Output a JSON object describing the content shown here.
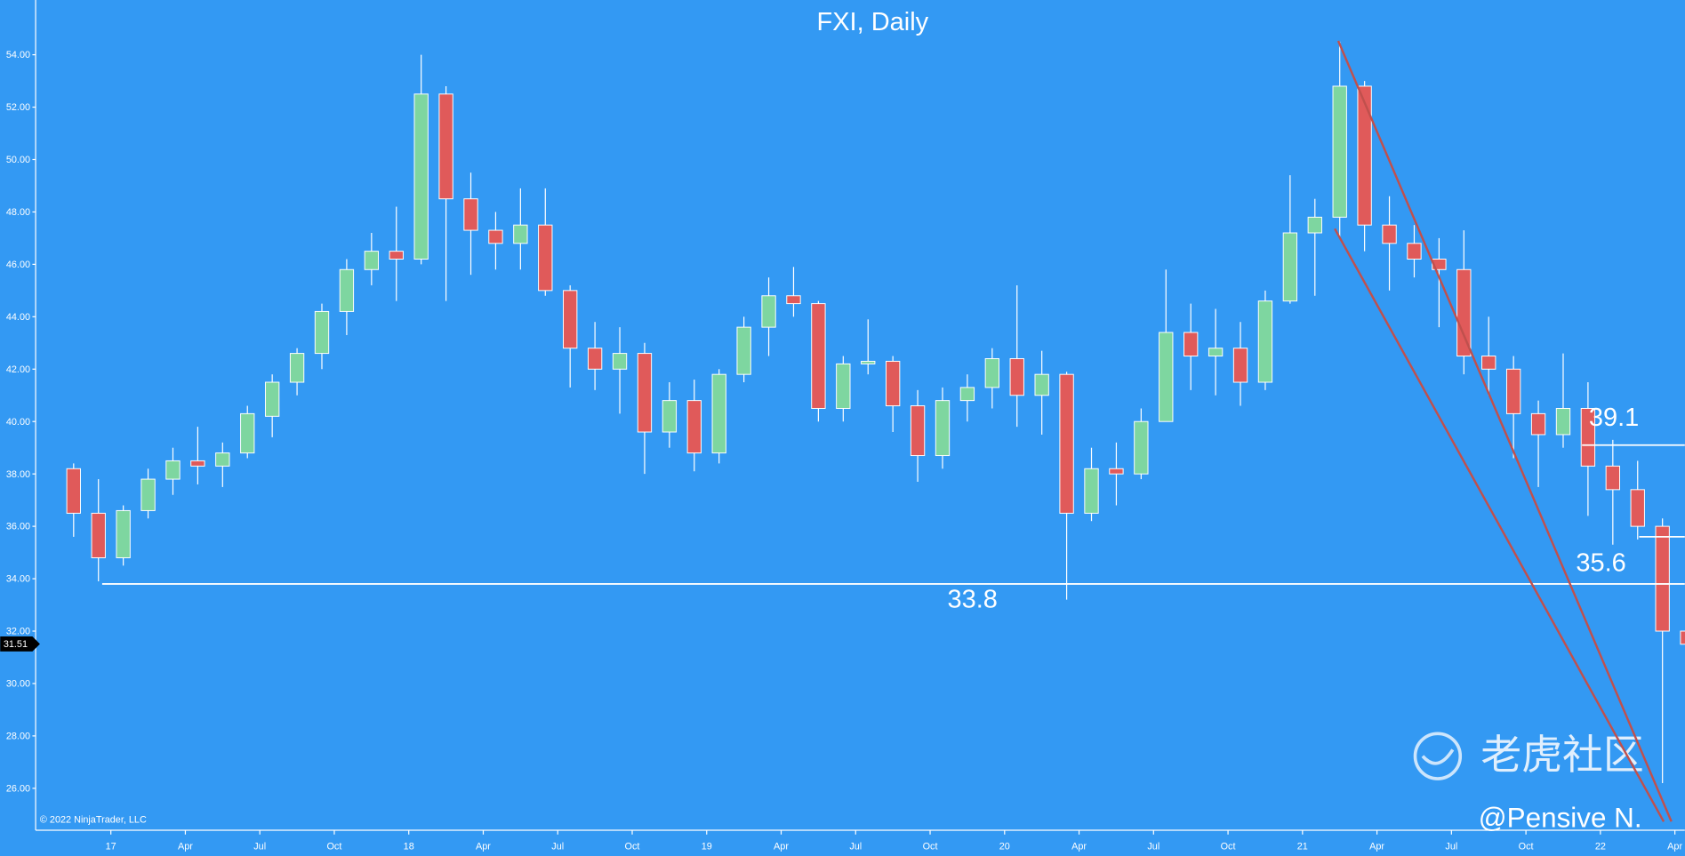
{
  "chart_data": {
    "type": "candlestick",
    "title": "FXI, Daily",
    "copyright": "© 2022 NinjaTrader, LLC",
    "watermark": "老虎社区",
    "author": "@Pensive N.",
    "background": "#3399f3",
    "up_color": "#7ed6a0",
    "down_color": "#e05a5a",
    "x": [
      -2,
      -1,
      0,
      1,
      2,
      3,
      4,
      5,
      6,
      7,
      8,
      9,
      10,
      11,
      12,
      13,
      14,
      15,
      16,
      17,
      18,
      19,
      20,
      21,
      22,
      23,
      24,
      25,
      26,
      27,
      28,
      29,
      30,
      31,
      32,
      33,
      34,
      35,
      36,
      37,
      38,
      39,
      40,
      41,
      42,
      43,
      44,
      45,
      46,
      47,
      48,
      49,
      50,
      51,
      52,
      53,
      54,
      55,
      56,
      57,
      58,
      59,
      60,
      61,
      62,
      63
    ],
    "open": [
      38.2,
      36.5,
      34.8,
      36.6,
      37.8,
      38.5,
      38.3,
      38.8,
      40.2,
      41.5,
      42.6,
      44.2,
      45.8,
      46.5,
      46.2,
      52.5,
      48.5,
      47.3,
      46.8,
      47.5,
      45.0,
      42.8,
      42.0,
      42.6,
      39.6,
      40.8,
      38.8,
      41.8,
      43.6,
      44.8,
      44.5,
      40.5,
      42.2,
      42.3,
      40.6,
      38.7,
      40.8,
      41.3,
      42.4,
      41.0,
      41.8,
      36.5,
      38.2,
      38.0,
      40.0,
      43.4,
      42.5,
      42.8,
      41.5,
      44.6,
      47.2,
      47.8,
      52.8,
      47.5,
      46.8,
      46.2,
      45.8,
      42.5,
      42.0,
      40.3,
      39.5,
      40.5,
      38.3,
      37.4,
      36.0,
      32.0
    ],
    "high": [
      38.4,
      37.8,
      36.8,
      38.2,
      39.0,
      39.8,
      39.2,
      40.6,
      41.8,
      42.8,
      44.5,
      46.2,
      47.2,
      48.2,
      54.0,
      52.8,
      49.5,
      48.0,
      48.9,
      48.9,
      45.2,
      43.8,
      43.6,
      43.0,
      41.5,
      41.6,
      42.0,
      44.0,
      45.5,
      45.9,
      44.6,
      42.5,
      43.9,
      42.5,
      41.2,
      41.3,
      41.8,
      42.8,
      45.2,
      42.7,
      41.9,
      39.0,
      39.2,
      40.5,
      45.8,
      44.5,
      44.3,
      43.8,
      45.0,
      49.4,
      48.5,
      54.5,
      53.0,
      48.6,
      47.5,
      47.0,
      47.3,
      44.0,
      42.5,
      40.8,
      42.6,
      41.5,
      39.3,
      38.5,
      36.3,
      34.3
    ],
    "low": [
      35.6,
      33.9,
      34.5,
      36.3,
      37.2,
      37.6,
      37.5,
      38.6,
      39.4,
      41.0,
      42.0,
      43.3,
      45.2,
      44.6,
      46.0,
      44.6,
      45.6,
      45.8,
      45.8,
      44.8,
      41.3,
      41.2,
      40.3,
      38.0,
      39.0,
      38.1,
      38.4,
      41.5,
      42.5,
      44.0,
      40.0,
      40.0,
      41.8,
      39.6,
      37.7,
      38.2,
      40.0,
      40.5,
      39.8,
      39.5,
      33.2,
      36.2,
      36.8,
      37.8,
      40.0,
      41.2,
      41.0,
      40.6,
      41.2,
      44.5,
      44.8,
      47.0,
      46.5,
      45.0,
      45.5,
      43.6,
      41.8,
      41.0,
      38.6,
      37.5,
      39.0,
      36.4,
      35.3,
      35.5,
      26.2,
      31.2
    ],
    "close": [
      36.5,
      34.8,
      36.6,
      37.8,
      38.5,
      38.3,
      38.8,
      40.3,
      41.5,
      42.6,
      44.2,
      45.8,
      46.5,
      46.2,
      52.5,
      48.5,
      47.3,
      46.8,
      47.5,
      45.0,
      42.8,
      42.0,
      42.6,
      39.6,
      40.8,
      38.8,
      41.8,
      43.6,
      44.8,
      44.5,
      40.5,
      42.2,
      42.3,
      40.6,
      38.7,
      40.8,
      41.3,
      42.4,
      41.0,
      41.8,
      36.5,
      38.2,
      38.0,
      40.0,
      43.4,
      42.5,
      42.8,
      41.5,
      44.6,
      47.2,
      47.8,
      52.8,
      47.5,
      46.8,
      46.2,
      45.8,
      42.5,
      42.0,
      40.3,
      39.5,
      40.5,
      38.3,
      37.4,
      36.0,
      32.0,
      31.5
    ],
    "xlim": [
      -3.03,
      63.4
    ],
    "ylim": [
      24.4,
      56.09
    ],
    "xticks": [
      {
        "value": 0,
        "label": "17"
      },
      {
        "value": 3,
        "label": "Apr"
      },
      {
        "value": 6,
        "label": "Jul"
      },
      {
        "value": 9,
        "label": "Oct"
      },
      {
        "value": 12,
        "label": "18"
      },
      {
        "value": 15,
        "label": "Apr"
      },
      {
        "value": 18,
        "label": "Jul"
      },
      {
        "value": 21,
        "label": "Oct"
      },
      {
        "value": 24,
        "label": "19"
      },
      {
        "value": 27,
        "label": "Apr"
      },
      {
        "value": 30,
        "label": "Jul"
      },
      {
        "value": 33,
        "label": "Oct"
      },
      {
        "value": 36,
        "label": "20"
      },
      {
        "value": 39,
        "label": "Apr"
      },
      {
        "value": 42,
        "label": "Jul"
      },
      {
        "value": 45,
        "label": "Oct"
      },
      {
        "value": 48,
        "label": "21"
      },
      {
        "value": 51,
        "label": "Apr"
      },
      {
        "value": 54,
        "label": "Jul"
      },
      {
        "value": 57,
        "label": "Oct"
      },
      {
        "value": 60,
        "label": "22"
      },
      {
        "value": 63,
        "label": "Apr"
      }
    ],
    "yticks": [
      {
        "value": 26,
        "label": "26.00"
      },
      {
        "value": 28,
        "label": "28.00"
      },
      {
        "value": 30,
        "label": "30.00"
      },
      {
        "value": 32,
        "label": "32.00"
      },
      {
        "value": 34,
        "label": "34.00"
      },
      {
        "value": 36,
        "label": "36.00"
      },
      {
        "value": 38,
        "label": "38.00"
      },
      {
        "value": 40,
        "label": "40.00"
      },
      {
        "value": 42,
        "label": "42.00"
      },
      {
        "value": 44,
        "label": "44.00"
      },
      {
        "value": 46,
        "label": "46.00"
      },
      {
        "value": 48,
        "label": "48.00"
      },
      {
        "value": 50,
        "label": "50.00"
      },
      {
        "value": 52,
        "label": "52.00"
      },
      {
        "value": 54,
        "label": "54.00"
      }
    ],
    "last_price": 31.51,
    "hlines": [
      {
        "value": 33.8,
        "x_start": -0.35,
        "color": "#ffffff"
      },
      {
        "value": 39.1,
        "x_start": 59.26,
        "color": "#ffffff"
      },
      {
        "value": 35.6,
        "x_start": 61.56,
        "color": "#ffffff"
      }
    ],
    "trendlines": [
      {
        "x": [
          49.44,
          62.86
        ],
        "y": [
          54.53,
          24.73
        ],
        "color": "#c0504d"
      },
      {
        "x": [
          49.3,
          62.55
        ],
        "y": [
          47.36,
          24.73
        ],
        "color": "#c0504d"
      }
    ]
  }
}
